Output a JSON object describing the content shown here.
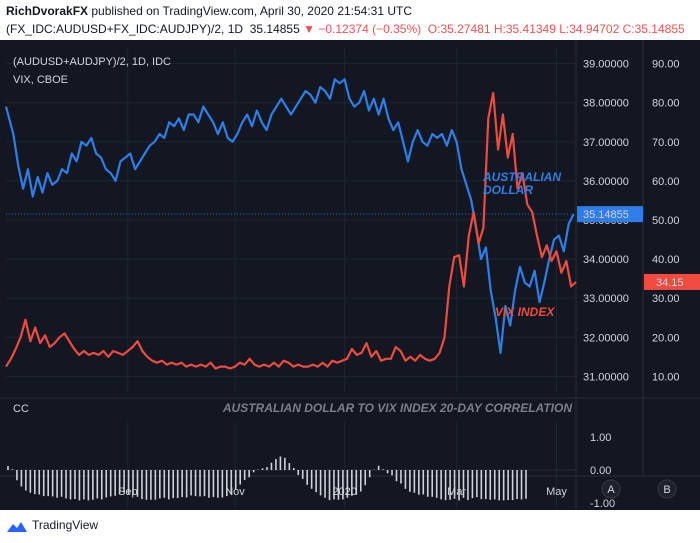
{
  "header": {
    "author": "RichDvorakFX",
    "published": "published on TradingView.com, April 30, 2020 21:54:31 UTC",
    "symbol": "(FX_IDC:AUDUSD+FX_IDC:AUDJPY)/2, 1D",
    "last": "35.14855",
    "change": "−0.12374 (−0.35%)",
    "ohlc": "O:35.27481 H:35.41349 L:34.94702 C:35.14855"
  },
  "footer": {
    "brand": "TradingView"
  },
  "colors": {
    "aud": "#2f7ee8",
    "vix": "#ef4b3f",
    "bg": "#131722",
    "grid": "#1f2433",
    "text": "#d1d4dc"
  },
  "chart_data": {
    "type": "line",
    "legend": {
      "line1": "(AUDUSD+AUDJPY)/2, 1D, IDC",
      "line2": "VIX, CBOE"
    },
    "x_ticks": [
      "Sep",
      "Nov",
      "2020",
      "Mar",
      "May"
    ],
    "x_tick_pos": [
      50,
      94,
      139,
      185,
      226
    ],
    "x_range": [
      0,
      234
    ],
    "left_axis": {
      "ticks": [
        "39.00000",
        "38.00000",
        "37.00000",
        "36.00000",
        "35.00000",
        "34.00000",
        "33.00000",
        "32.00000",
        "31.00000"
      ],
      "range": [
        30.6,
        39.4
      ]
    },
    "right_axis": {
      "ticks": [
        "90.00",
        "80.00",
        "70.00",
        "60.00",
        "50.00",
        "40.00",
        "30.00",
        "20.00",
        "10.00"
      ],
      "range": [
        6,
        94
      ]
    },
    "series": [
      {
        "name": "(AUDUSD+AUDJPY)/2",
        "color": "#2f7ee8",
        "axis": "left",
        "last_label": "35.14855",
        "points": [
          [
            0,
            37.9
          ],
          [
            3,
            37.2
          ],
          [
            5,
            36.4
          ],
          [
            7,
            35.8
          ],
          [
            9,
            36.3
          ],
          [
            11,
            35.6
          ],
          [
            13,
            36.1
          ],
          [
            15,
            35.7
          ],
          [
            17,
            36.2
          ],
          [
            19,
            35.9
          ],
          [
            21,
            36.0
          ],
          [
            23,
            36.3
          ],
          [
            25,
            36.2
          ],
          [
            27,
            36.7
          ],
          [
            29,
            36.5
          ],
          [
            31,
            37.0
          ],
          [
            33,
            36.9
          ],
          [
            35,
            37.1
          ],
          [
            37,
            36.7
          ],
          [
            39,
            36.6
          ],
          [
            41,
            36.3
          ],
          [
            43,
            36.2
          ],
          [
            45,
            36.0
          ],
          [
            47,
            36.5
          ],
          [
            49,
            36.6
          ],
          [
            51,
            36.7
          ],
          [
            53,
            36.3
          ],
          [
            55,
            36.5
          ],
          [
            57,
            36.7
          ],
          [
            59,
            36.9
          ],
          [
            61,
            37.0
          ],
          [
            63,
            37.2
          ],
          [
            65,
            37.1
          ],
          [
            67,
            37.5
          ],
          [
            69,
            37.4
          ],
          [
            71,
            37.6
          ],
          [
            73,
            37.3
          ],
          [
            75,
            37.7
          ],
          [
            77,
            37.7
          ],
          [
            79,
            37.5
          ],
          [
            81,
            37.9
          ],
          [
            83,
            37.7
          ],
          [
            85,
            37.5
          ],
          [
            87,
            37.2
          ],
          [
            89,
            37.5
          ],
          [
            91,
            37.1
          ],
          [
            93,
            37.0
          ],
          [
            95,
            37.2
          ],
          [
            97,
            37.5
          ],
          [
            99,
            37.7
          ],
          [
            101,
            37.4
          ],
          [
            103,
            37.8
          ],
          [
            105,
            37.5
          ],
          [
            107,
            37.3
          ],
          [
            109,
            37.7
          ],
          [
            111,
            37.9
          ],
          [
            113,
            38.1
          ],
          [
            115,
            37.9
          ],
          [
            117,
            37.7
          ],
          [
            119,
            37.9
          ],
          [
            121,
            38.1
          ],
          [
            123,
            38.3
          ],
          [
            125,
            38.2
          ],
          [
            127,
            38.0
          ],
          [
            129,
            38.4
          ],
          [
            131,
            38.3
          ],
          [
            133,
            38.1
          ],
          [
            135,
            38.6
          ],
          [
            137,
            38.5
          ],
          [
            139,
            38.6
          ],
          [
            141,
            38.1
          ],
          [
            143,
            37.9
          ],
          [
            145,
            38.0
          ],
          [
            147,
            38.3
          ],
          [
            149,
            37.8
          ],
          [
            151,
            38.1
          ],
          [
            153,
            37.7
          ],
          [
            155,
            38.1
          ],
          [
            157,
            37.6
          ],
          [
            159,
            37.3
          ],
          [
            161,
            37.5
          ],
          [
            163,
            37.0
          ],
          [
            165,
            36.5
          ],
          [
            167,
            37.0
          ],
          [
            169,
            37.3
          ],
          [
            171,
            37.0
          ],
          [
            173,
            36.9
          ],
          [
            175,
            37.2
          ],
          [
            177,
            37.1
          ],
          [
            179,
            37.2
          ],
          [
            181,
            36.9
          ],
          [
            183,
            37.3
          ],
          [
            185,
            37.0
          ],
          [
            187,
            36.3
          ],
          [
            189,
            35.9
          ],
          [
            191,
            35.5
          ],
          [
            193,
            34.8
          ],
          [
            195,
            34.0
          ],
          [
            197,
            34.3
          ],
          [
            199,
            33.2
          ],
          [
            201,
            32.5
          ],
          [
            203,
            31.6
          ],
          [
            205,
            32.8
          ],
          [
            207,
            32.3
          ],
          [
            209,
            33.2
          ],
          [
            211,
            33.8
          ],
          [
            213,
            33.4
          ],
          [
            215,
            33.3
          ],
          [
            217,
            33.7
          ],
          [
            219,
            32.9
          ],
          [
            221,
            33.4
          ],
          [
            223,
            34.0
          ],
          [
            225,
            34.5
          ],
          [
            227,
            34.6
          ],
          [
            229,
            34.2
          ],
          [
            231,
            34.9
          ],
          [
            233,
            35.15
          ]
        ]
      },
      {
        "name": "VIX",
        "color": "#ef4b3f",
        "axis": "right",
        "last_label": "34.15",
        "points": [
          [
            0,
            12.5
          ],
          [
            2,
            14.5
          ],
          [
            4,
            17.0
          ],
          [
            6,
            20.0
          ],
          [
            8,
            24.5
          ],
          [
            10,
            19.0
          ],
          [
            12,
            22.5
          ],
          [
            14,
            18.5
          ],
          [
            16,
            20.5
          ],
          [
            18,
            17.5
          ],
          [
            20,
            18.5
          ],
          [
            22,
            20.0
          ],
          [
            24,
            21.0
          ],
          [
            26,
            19.0
          ],
          [
            28,
            17.0
          ],
          [
            30,
            15.5
          ],
          [
            32,
            16.5
          ],
          [
            34,
            15.5
          ],
          [
            36,
            16.0
          ],
          [
            38,
            15.5
          ],
          [
            40,
            16.5
          ],
          [
            42,
            15.0
          ],
          [
            44,
            16.5
          ],
          [
            46,
            16.0
          ],
          [
            48,
            15.5
          ],
          [
            50,
            16.5
          ],
          [
            52,
            17.5
          ],
          [
            54,
            19.0
          ],
          [
            56,
            16.5
          ],
          [
            58,
            15.0
          ],
          [
            60,
            14.0
          ],
          [
            62,
            13.5
          ],
          [
            64,
            14.0
          ],
          [
            66,
            13.0
          ],
          [
            68,
            13.5
          ],
          [
            70,
            13.0
          ],
          [
            72,
            13.5
          ],
          [
            74,
            12.5
          ],
          [
            76,
            13.0
          ],
          [
            78,
            12.5
          ],
          [
            80,
            13.0
          ],
          [
            82,
            12.5
          ],
          [
            84,
            13.5
          ],
          [
            86,
            12.0
          ],
          [
            88,
            12.5
          ],
          [
            90,
            12.5
          ],
          [
            92,
            12.0
          ],
          [
            94,
            12.5
          ],
          [
            96,
            13.5
          ],
          [
            98,
            13.0
          ],
          [
            100,
            14.5
          ],
          [
            102,
            13.0
          ],
          [
            104,
            12.5
          ],
          [
            106,
            13.0
          ],
          [
            108,
            12.5
          ],
          [
            110,
            13.5
          ],
          [
            112,
            12.5
          ],
          [
            114,
            14.0
          ],
          [
            116,
            13.5
          ],
          [
            118,
            12.5
          ],
          [
            120,
            13.0
          ],
          [
            122,
            12.5
          ],
          [
            124,
            12.5
          ],
          [
            126,
            13.0
          ],
          [
            128,
            12.5
          ],
          [
            130,
            13.5
          ],
          [
            132,
            12.5
          ],
          [
            134,
            14.0
          ],
          [
            136,
            13.5
          ],
          [
            138,
            14.0
          ],
          [
            140,
            14.5
          ],
          [
            142,
            17.0
          ],
          [
            144,
            15.5
          ],
          [
            146,
            16.0
          ],
          [
            148,
            18.5
          ],
          [
            150,
            15.0
          ],
          [
            152,
            16.5
          ],
          [
            154,
            14.0
          ],
          [
            156,
            14.5
          ],
          [
            158,
            14.5
          ],
          [
            160,
            17.5
          ],
          [
            162,
            16.5
          ],
          [
            164,
            14.0
          ],
          [
            166,
            15.0
          ],
          [
            168,
            14.0
          ],
          [
            170,
            15.5
          ],
          [
            172,
            14.5
          ],
          [
            174,
            14.0
          ],
          [
            176,
            14.5
          ],
          [
            178,
            16.0
          ],
          [
            180,
            20.0
          ],
          [
            182,
            33.0
          ],
          [
            184,
            40.5
          ],
          [
            186,
            41.0
          ],
          [
            188,
            33.0
          ],
          [
            190,
            46.0
          ],
          [
            192,
            52.0
          ],
          [
            194,
            44.0
          ],
          [
            196,
            48.0
          ],
          [
            198,
            76.0
          ],
          [
            200,
            82.5
          ],
          [
            202,
            68.0
          ],
          [
            204,
            77.0
          ],
          [
            206,
            66.0
          ],
          [
            208,
            72.0
          ],
          [
            210,
            58.0
          ],
          [
            212,
            62.0
          ],
          [
            214,
            54.0
          ],
          [
            216,
            52.0
          ],
          [
            218,
            46.0
          ],
          [
            220,
            40.5
          ],
          [
            222,
            43.5
          ],
          [
            224,
            39.5
          ],
          [
            226,
            42.0
          ],
          [
            228,
            36.5
          ],
          [
            230,
            39.5
          ],
          [
            232,
            33.0
          ],
          [
            234,
            34.15
          ]
        ]
      }
    ],
    "annotations": {
      "aud": [
        "AUSTRALIAN",
        "DOLLAR"
      ],
      "vix": "VIX INDEX"
    },
    "correlation": {
      "label": "CC",
      "title": "AUSTRALIAN DOLLAR TO VIX INDEX 20-DAY CORRELATION",
      "ticks": [
        "1.00",
        "0.00",
        "-1.00"
      ],
      "range": [
        -1.15,
        1.15
      ],
      "values": [
        0.12,
        0.02,
        -0.31,
        -0.5,
        -0.62,
        -0.69,
        -0.73,
        -0.74,
        -0.79,
        -0.79,
        -0.8,
        -0.84,
        -0.81,
        -0.86,
        -0.89,
        -0.88,
        -0.92,
        -0.89,
        -0.92,
        -0.9,
        -0.86,
        -0.89,
        -0.83,
        -0.8,
        -0.78,
        -0.72,
        -0.68,
        -0.73,
        -0.76,
        -0.81,
        -0.88,
        -0.9,
        -0.9,
        -0.9,
        -0.86,
        -0.84,
        -0.89,
        -0.85,
        -0.85,
        -0.82,
        -0.83,
        -0.77,
        -0.79,
        -0.8,
        -0.79,
        -0.84,
        -0.82,
        -0.84,
        -0.83,
        -0.79,
        -0.71,
        -0.58,
        -0.44,
        -0.3,
        -0.22,
        -0.07,
        0.01,
        0.05,
        0.09,
        0.22,
        0.33,
        0.41,
        0.37,
        0.21,
        0.06,
        -0.15,
        -0.27,
        -0.45,
        -0.57,
        -0.67,
        -0.77,
        -0.84,
        -0.91,
        -0.89,
        -0.9,
        -0.89,
        -0.84,
        -0.78,
        -0.75,
        -0.65,
        -0.46,
        -0.22,
        0.01,
        0.13,
        0.02,
        -0.1,
        -0.16,
        -0.34,
        -0.41,
        -0.57,
        -0.66,
        -0.69,
        -0.75,
        -0.74,
        -0.81,
        -0.81,
        -0.84,
        -0.89,
        -0.91,
        -0.9,
        -0.87,
        -0.92,
        -0.84,
        -0.91,
        -0.85,
        -0.82,
        -0.88,
        -0.88,
        -0.9,
        -0.89,
        -0.92,
        -0.92,
        -0.91,
        -0.91,
        -0.88,
        -0.89,
        -0.87
      ]
    }
  }
}
